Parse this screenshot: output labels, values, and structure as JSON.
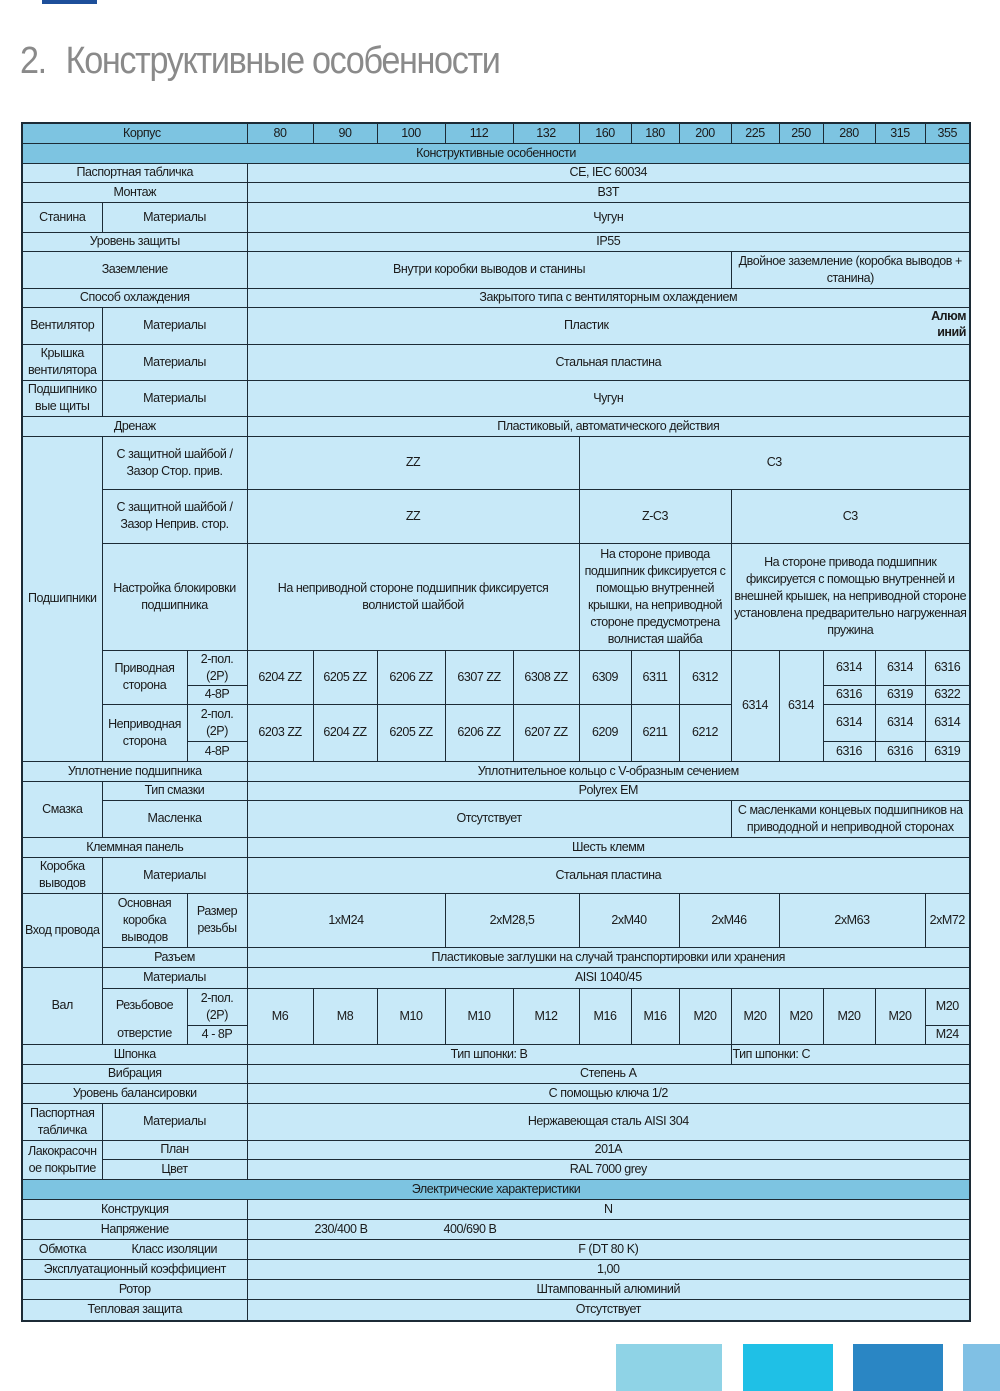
{
  "header": {
    "number": "2.",
    "title": "Конструктивные особенности"
  },
  "decor": {
    "colors": [
      "#1d4f9a",
      "#8fd3e6",
      "#1fc0e6",
      "#2a86c4",
      "#80c0e4"
    ],
    "header_bg": "#7dc4e1",
    "cell_bg": "#c8e9f8"
  },
  "table": {
    "corpus_label": "Корпус",
    "sizes": [
      "80",
      "90",
      "100",
      "112",
      "132",
      "160",
      "180",
      "200",
      "225",
      "250",
      "280",
      "315",
      "355"
    ],
    "section_design": "Конструктивные особенности",
    "passport": {
      "label": "Паспортная табличка",
      "value": "CE, IEC 60034"
    },
    "mounting": {
      "label": "Монтаж",
      "value": "B3T"
    },
    "frame": {
      "label": "Станина",
      "sub": "Материалы",
      "value": "Чугун"
    },
    "protection": {
      "label": "Уровень защиты",
      "value": "IP55"
    },
    "grounding": {
      "label": "Заземление",
      "value1": "Внутри коробки выводов и станины",
      "value2": "Двойное заземление (коробка выводов + станина)"
    },
    "cooling": {
      "label": "Способ охлаждения",
      "value": "Закрытого типа с вентиляторным охлаждением"
    },
    "fan": {
      "label": "Вентилятор",
      "sub": "Материалы",
      "value": "Пластик",
      "value_last": "Алюм иний"
    },
    "fan_cover": {
      "label": "Крышка вентилятора",
      "sub": "Материалы",
      "value": "Стальная пластина"
    },
    "end_shields": {
      "label": "Подшипнико вые щиты",
      "sub": "Материалы",
      "value": "Чугун"
    },
    "drain": {
      "label": "Дренаж",
      "value": "Пластиковый, автоматического действия"
    },
    "bearings": {
      "label": "Подшипники",
      "clearance_de": {
        "label": "С защитной шайбой / Зазор Стор. прив.",
        "v1": "ZZ",
        "v2": "C3"
      },
      "clearance_nde": {
        "label": "С защитной шайбой / Зазор Неприв. стор.",
        "v1": "ZZ",
        "v2": "Z-C3",
        "v3": "C3"
      },
      "locking": {
        "label": "Настройка блокировки подшипника",
        "v1": "На неприводной стороне подшипник фиксируется волнистой шайбой",
        "v2": "На стороне привода подшипник фиксируется с помощью внутренней крышки, на неприводной стороне предусмотрена волнистая шайба",
        "v3": "На стороне привода подшипник фиксируется с помощью внутренней и внешней крышек, на неприводной стороне установлена предварительно нагруженная пружина"
      },
      "pole_2p": "2-пол. (2P)",
      "pole_48p": "4-8P",
      "drive": {
        "label": "Приводная сторона",
        "values": [
          "6204 ZZ",
          "6205 ZZ",
          "6206 ZZ",
          "6307 ZZ",
          "6308 ZZ",
          "6309",
          "6311",
          "6312"
        ],
        "v225": "6314",
        "v250": "6314",
        "last_2p": [
          "6314",
          "6314",
          "6316"
        ],
        "last_48p": [
          "6316",
          "6319",
          "6322"
        ]
      },
      "nondrive": {
        "label": "Неприводная сторона",
        "values": [
          "6203 ZZ",
          "6204 ZZ",
          "6205 ZZ",
          "6206 ZZ",
          "6207 ZZ",
          "6209",
          "6211",
          "6212"
        ],
        "last_2p": [
          "6314",
          "6314",
          "6314"
        ],
        "last_48p": [
          "6316",
          "6316",
          "6319"
        ]
      }
    },
    "bearing_seal": {
      "label": "Уплотнение подшипника",
      "value": "Уплотнительное кольцо с V-образным сечением"
    },
    "lubrication": {
      "label": "Смазка",
      "type_label": "Тип смазки",
      "type_value": "Polyrex EM",
      "nipple_label": "Масленка",
      "nipple_v1": "Отсутствует",
      "nipple_v2": "С масленками концевых подшипников на привододной и неприводной сторонах"
    },
    "terminal_board": {
      "label": "Клеммная панель",
      "value": "Шесть клемм"
    },
    "terminal_box": {
      "label": "Коробка выводов",
      "sub": "Материалы",
      "value": "Стальная пластина"
    },
    "cable_entry": {
      "label": "Вход провода",
      "sub1": "Основная коробка выводов",
      "sub2": "Размер резьбы",
      "values": [
        "1xM24",
        "2xM28,5",
        "2xM40",
        "2xM46",
        "2xM63",
        "2xM72"
      ],
      "connector_label": "Разъем",
      "connector_value": "Пластиковые заглушки на случай транспортировки или хранения"
    },
    "shaft": {
      "label": "Вал",
      "mat_label": "Материалы",
      "mat_value": "AISI 1040/45",
      "hole_label_1": "Резьбовое",
      "hole_label_2": "отверстие",
      "pole_2p": "2-пол. (2P)",
      "pole_48p": "4 - 8P",
      "values": [
        "M6",
        "M8",
        "M10",
        "M10",
        "M12",
        "M16",
        "M16",
        "M20",
        "M20",
        "M20",
        "M20",
        "M20"
      ],
      "last_2p": "M20",
      "last_48p": "M24"
    },
    "key": {
      "label": "Шпонка",
      "v1": "Тип шпонки: B",
      "v2": "Тип шпонки: C"
    },
    "vibration": {
      "label": "Вибрация",
      "value": "Степень A"
    },
    "balancing": {
      "label": "Уровень балансировки",
      "value": "С помощью ключа 1/2"
    },
    "nameplate": {
      "label": "Паспортная табличка",
      "sub": "Материалы",
      "value": "Нержавеющая сталь AISI 304"
    },
    "paint": {
      "label": "Лакокрасочн ое покрытие",
      "plan_label": "План",
      "plan_value": "201A",
      "color_label": "Цвет",
      "color_value": "RAL 7000 grey"
    },
    "section_electric": "Электрические характеристики",
    "construction": {
      "label": "Конструкция",
      "value": "N"
    },
    "voltage": {
      "label": "Напряжение",
      "v1": "230/400 B",
      "v2": "400/690 B"
    },
    "winding": {
      "label": "Обмотка",
      "sub": "Класс изоляции",
      "value": "F (DT 80 K)"
    },
    "service_factor": {
      "label": "Эксплуатационный коэффициент",
      "value": "1,00"
    },
    "rotor": {
      "label": "Ротор",
      "value": "Штампованный алюминий"
    },
    "thermal": {
      "label": "Тепловая защита",
      "value": "Отсутствует"
    }
  }
}
